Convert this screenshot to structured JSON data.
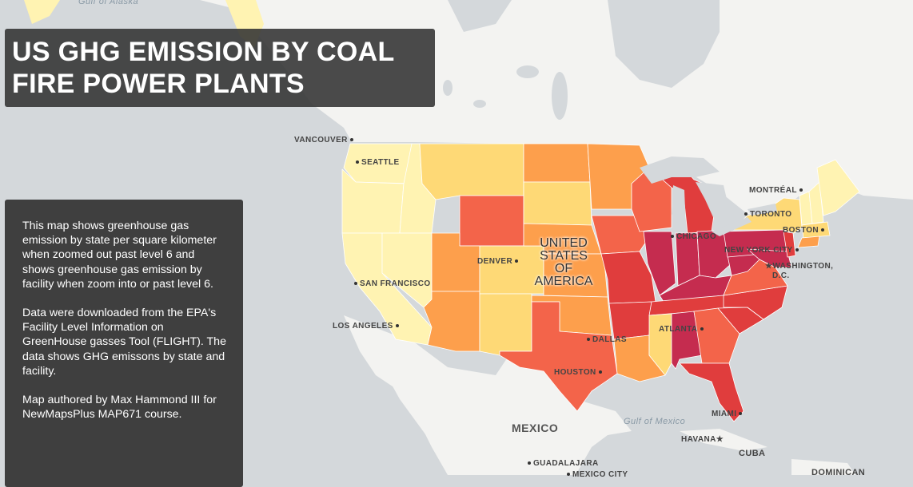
{
  "title": "US GHG EMISSION BY COAL FIRE POWER PLANTS",
  "info": {
    "p1": "This map shows greenhouse gas emission by state per square kilometer when zoomed out past level 6 and shows greenhouse gas emission by facility when zoom into or past level 6.",
    "p2": "Data were downloaded from the EPA's Facility Level Information on GreenHouse gasses Tool (FLIGHT). The data shows GHG emissons by state and facility.",
    "p3": "Map authored by Max Hammond III for NewMapsPlus MAP671 course."
  },
  "labels": {
    "usa_line1": "UNITED",
    "usa_line2": "STATES OF",
    "usa_line3": "AMERICA",
    "mexico": "MEXICO",
    "cuba": "CUBA",
    "dominican": "DOMINICAN",
    "gulf_alaska": "Gulf of Alaska",
    "gulf_mexico": "Gulf of Mexico"
  },
  "cities": {
    "vancouver": "VANCOUVER",
    "seattle": "SEATTLE",
    "san_francisco": "SAN FRANCISCO",
    "los_angeles": "LOS ANGELES",
    "denver": "DENVER",
    "dallas": "DALLAS",
    "houston": "HOUSTON",
    "chicago": "CHICAGO",
    "atlanta": "ATLANTA",
    "miami": "MIAMI",
    "havana": "HAVANA",
    "toronto": "TORONTO",
    "montreal": "MONTRÉAL",
    "boston": "BOSTON",
    "new_york": "NEW YORK CITY",
    "washington1": "WASHINGTON,",
    "washington2": "D.C.",
    "guadalajara": "GUADALAJARA",
    "mexico_city": "MEXICO CITY"
  },
  "colors": {
    "very_low": "#fff3b2",
    "low": "#fed976",
    "medium": "#fd9f4c",
    "high": "#f3644a",
    "very_high": "#e03d3d",
    "highest": "#c52c4f"
  }
}
